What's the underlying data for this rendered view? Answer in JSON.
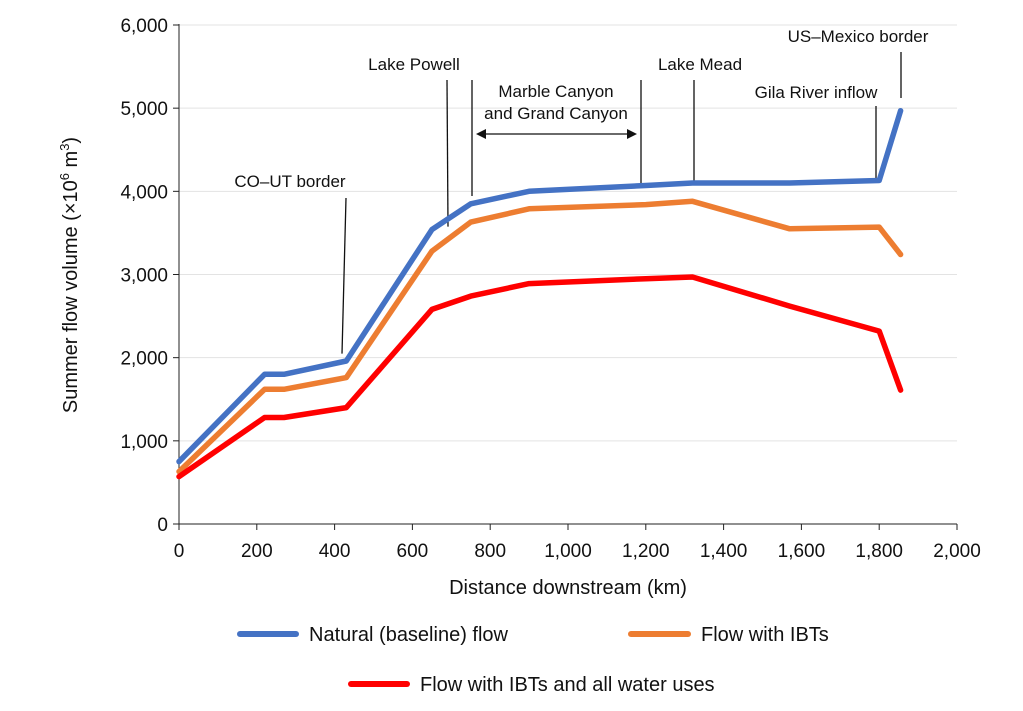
{
  "chart_data": {
    "type": "line",
    "title": "",
    "xlabel": "Distance downstream (km)",
    "ylabel": "Summer flow volume (×10⁶ m³)",
    "ylabel_parts": {
      "main": "Summer flow volume (×10",
      "exp1": "6",
      "mid": " m",
      "exp2": "3",
      "end": ")"
    },
    "xlim": [
      0,
      2000
    ],
    "ylim": [
      0,
      6000
    ],
    "xticks": [
      0,
      200,
      400,
      600,
      800,
      1000,
      1200,
      1400,
      1600,
      1800,
      2000
    ],
    "xtick_labels": [
      "0",
      "200",
      "400",
      "600",
      "800",
      "1,000",
      "1,200",
      "1,400",
      "1,600",
      "1,800",
      "2,000"
    ],
    "yticks": [
      0,
      1000,
      2000,
      3000,
      4000,
      5000,
      6000
    ],
    "ytick_labels": [
      "0",
      "1,000",
      "2,000",
      "3,000",
      "4,000",
      "5,000",
      "6,000"
    ],
    "grid": "horizontal",
    "series": [
      {
        "name": "Natural (baseline) flow",
        "color": "#4472c4",
        "points": [
          [
            0,
            750
          ],
          [
            220,
            1800
          ],
          [
            270,
            1800
          ],
          [
            430,
            1960
          ],
          [
            650,
            3540
          ],
          [
            750,
            3850
          ],
          [
            900,
            4000
          ],
          [
            1200,
            4070
          ],
          [
            1320,
            4100
          ],
          [
            1570,
            4100
          ],
          [
            1800,
            4130
          ],
          [
            1855,
            4970
          ]
        ]
      },
      {
        "name": "Flow with IBTs",
        "color": "#ed7d31",
        "points": [
          [
            0,
            630
          ],
          [
            220,
            1620
          ],
          [
            270,
            1620
          ],
          [
            430,
            1760
          ],
          [
            650,
            3280
          ],
          [
            750,
            3630
          ],
          [
            900,
            3790
          ],
          [
            1200,
            3840
          ],
          [
            1320,
            3880
          ],
          [
            1570,
            3550
          ],
          [
            1800,
            3570
          ],
          [
            1855,
            3240
          ]
        ]
      },
      {
        "name": "Flow with IBTs and all water uses",
        "color": "#ff0000",
        "points": [
          [
            0,
            570
          ],
          [
            220,
            1280
          ],
          [
            270,
            1280
          ],
          [
            430,
            1400
          ],
          [
            650,
            2580
          ],
          [
            750,
            2740
          ],
          [
            900,
            2890
          ],
          [
            1200,
            2950
          ],
          [
            1320,
            2970
          ],
          [
            1570,
            2620
          ],
          [
            1800,
            2320
          ],
          [
            1855,
            1610
          ]
        ]
      }
    ],
    "annotations": [
      {
        "id": "co-ut",
        "lines": [
          "CO–UT border"
        ],
        "x": 420,
        "y_from": 2000,
        "y_to": 3900
      },
      {
        "id": "lake-powell",
        "lines": [
          "Lake Powell"
        ],
        "x": 690,
        "x2": 750,
        "y_from": 3600,
        "y_to": 5400
      },
      {
        "id": "grand-canyon",
        "lines": [
          "Marble Canyon",
          "and Grand Canyon"
        ],
        "x_from": 760,
        "x_to": 1190
      },
      {
        "id": "lake-mead",
        "lines": [
          "Lake Mead"
        ],
        "x": 1320,
        "x_leader": 1190,
        "y_from": 4120,
        "y_to": 5400
      },
      {
        "id": "gila",
        "lines": [
          "Gila River inflow"
        ],
        "x": 1800,
        "y_from": 4140,
        "y_to": 5000
      },
      {
        "id": "us-mexico",
        "lines": [
          "US–Mexico border"
        ],
        "x": 1855,
        "y_from": 4980,
        "y_to": 5580
      }
    ]
  }
}
